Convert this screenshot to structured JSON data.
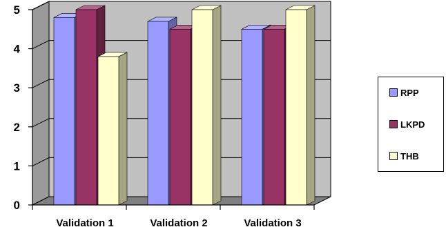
{
  "chart_data": {
    "type": "bar",
    "style": "3d-clustered",
    "categories": [
      "Validation 1",
      "Validation 2",
      "Validation 3"
    ],
    "series": [
      {
        "name": "RPP",
        "values": [
          4.8,
          4.7,
          4.5
        ],
        "color": "#9999ff"
      },
      {
        "name": "LKPD",
        "values": [
          5.0,
          4.5,
          4.5
        ],
        "color": "#993366"
      },
      {
        "name": "THB",
        "values": [
          3.8,
          5.0,
          5.0
        ],
        "color": "#ffffcc"
      }
    ],
    "ylim": [
      0,
      5
    ],
    "yticks": [
      "0",
      "1",
      "2",
      "3",
      "4",
      "5"
    ],
    "grid": true,
    "legend_position": "right",
    "wall_color": "#c0c0c0",
    "floor_color": "#808080"
  }
}
